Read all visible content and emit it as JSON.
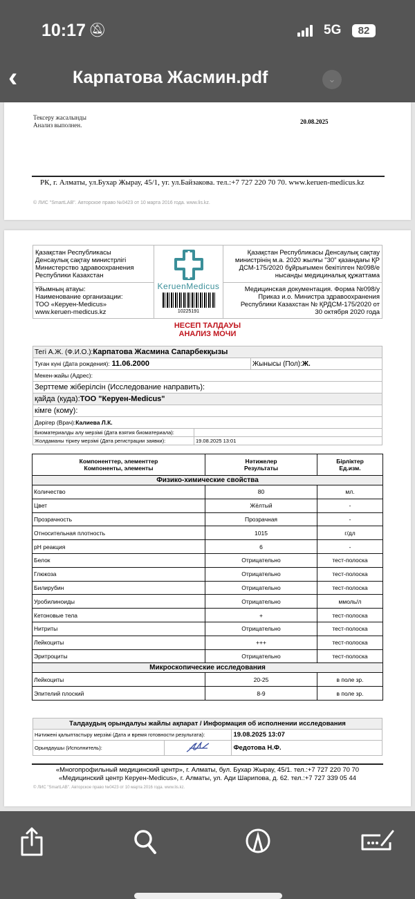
{
  "status_bar": {
    "time": "10:17",
    "network": "5G",
    "battery": "82",
    "icons": [
      "bell-slash-icon",
      "signal-icon"
    ]
  },
  "nav": {
    "title": "Карпатова Жасмин.pdf",
    "back_icon": "chevron-left-icon",
    "menu_icon": "chevron-down-icon"
  },
  "page1": {
    "line1": "Тексеру жасалынды",
    "line2": "Анализ выполнен.",
    "date": "20.08.2025",
    "address": "РК, г. Алматы, ул.Бухар Жырау, 45/1, уг. ул.Байзакова. тел.:+7 727 220 70 70.  www.keruen-medicus.kz",
    "copyright": "© ЛИС \"SmartLAB\". Авторское право №0423 от 10 марта 2016 года. www.lis.kz."
  },
  "header": {
    "ministry": [
      "Қазақстан Республикасы",
      "Денсаулық сақтау министрлігі",
      "Министерство здравоохранения",
      "Республики Казахстан"
    ],
    "org": [
      "Ұйымның атауы:",
      "Наименование организации:",
      "ТОО «Керуен-Medicus»",
      "www.keruen-medicus.kz"
    ],
    "order_kz": [
      "Қазақстан Республикасы Денсаулық сақтау",
      "министрінің м.а. 2020 жылғы \"30\" қазандағы ҚР",
      "ДСМ-175/2020 бұйрығымен бекітілген №098/е",
      "нысанды медициналық құжаттама"
    ],
    "order_ru": [
      "Медицинская документация. Форма №098/у",
      "Приказ и.о. Министра здравоохранения",
      "Республики Казахстан № ҚРДСМ-175/2020 от",
      "30 октября 2020 года"
    ],
    "logo_text": "KeruenMedicus",
    "barcode": "10225191",
    "brand_color": "#3a8f99"
  },
  "title_kz": "НЕСЕП ТАЛДАУЫ",
  "title_ru": "АНАЛИЗ МОЧИ",
  "patient": {
    "fio_label": "Тегі А.Ж. (Ф.И.О.):",
    "fio": "Карпатова Жасмина Сапарбекқызы",
    "dob_label": "Туған күні (Дата рождения):",
    "dob": "11.06.2000",
    "sex_label": "Жынысы (Пол):",
    "sex": "Ж.",
    "address_label": "Мекен-жайы (Адрес):",
    "referral_label": "Зерттеме жіберілсін (Исследование направить):",
    "where_label": "қайда (куда):",
    "where": "ТОО \"Керуен-Medicus\"",
    "whom_label": "кімге (кому):",
    "doctor_label": "Дәрігер (Врач):",
    "doctor": "Калиева Л.К.",
    "bio_label": "Биоматериалды алу мерзімі (Дата взятия биоматериала):",
    "bio": "",
    "reg_label": "Жолдаманы тіркеу мерзімі (Дата регистрации заявки):",
    "reg": "19.08.2025 13:01"
  },
  "results": {
    "headers": [
      [
        "Компоненттер, элементтер",
        "Компоненты, элементы"
      ],
      [
        "Нәтижелер",
        "Результаты"
      ],
      [
        "Бірліктер",
        "Ед.изм."
      ]
    ],
    "sections": [
      {
        "title": "Физико-химические свойства",
        "rows": [
          [
            "Количество",
            "80",
            "мл."
          ],
          [
            "Цвет",
            "Жёлтый",
            "-"
          ],
          [
            "Прозрачность",
            "Прозрачная",
            "-"
          ],
          [
            "Относительная плотность",
            "1015",
            "г/дл"
          ],
          [
            "pH реакция",
            "6",
            "-"
          ],
          [
            "Белок",
            "Отрицательно",
            "тест-полоска"
          ],
          [
            "Глюкоза",
            "Отрицательно",
            "тест-полоска"
          ],
          [
            "Билирубин",
            "Отрицательно",
            "тест-полоска"
          ],
          [
            "Уробилиноиды",
            "Отрицательно",
            "ммоль/л"
          ],
          [
            "Кетоновые тела",
            "+",
            "тест-полоска"
          ],
          [
            "Нитриты",
            "Отрицательно",
            "тест-полоска"
          ],
          [
            "Лейкоциты",
            "+++",
            "тест-полоска"
          ],
          [
            "Эритроциты",
            "Отрицательно",
            "тест-полоска"
          ]
        ]
      },
      {
        "title": "Микроскопические исследования",
        "rows": [
          [
            "Лейкоциты",
            "20-25",
            "в поле зр."
          ],
          [
            "Эпителий плоский",
            "8-9",
            "в поле зр."
          ]
        ]
      }
    ]
  },
  "execution": {
    "title": "Талдаудың орындалуы жайлы ақпарат / Информация об исполнении исследования",
    "ready_label": "Нәтижені қалыптастыру мерзімі (Дата и время готовности  результата):",
    "ready": "19.08.2025 13:07",
    "executor_label": "Орындаушы (Исполнитель):",
    "executor": "Федотова Н.Ф."
  },
  "footer": {
    "line1": "«Многопрофильный медицинский центр», г. Алматы, бул. Бухар Жырау, 45/1. тел.:+7 727 220 70 70",
    "line2": "«Медицинский центр Керуен-Medicus», г. Алматы, ул. Ади Шарипова, д. 62. тел.:+7 727 339 05 44",
    "copyright": "© ЛИС \"SmartLAB\". Авторское право №0423 от 10 марта 2016 года. www.lis.kz."
  },
  "toolbar": {
    "icons": [
      "share-icon",
      "search-icon",
      "markup-icon",
      "fill-and-sign-icon"
    ]
  }
}
